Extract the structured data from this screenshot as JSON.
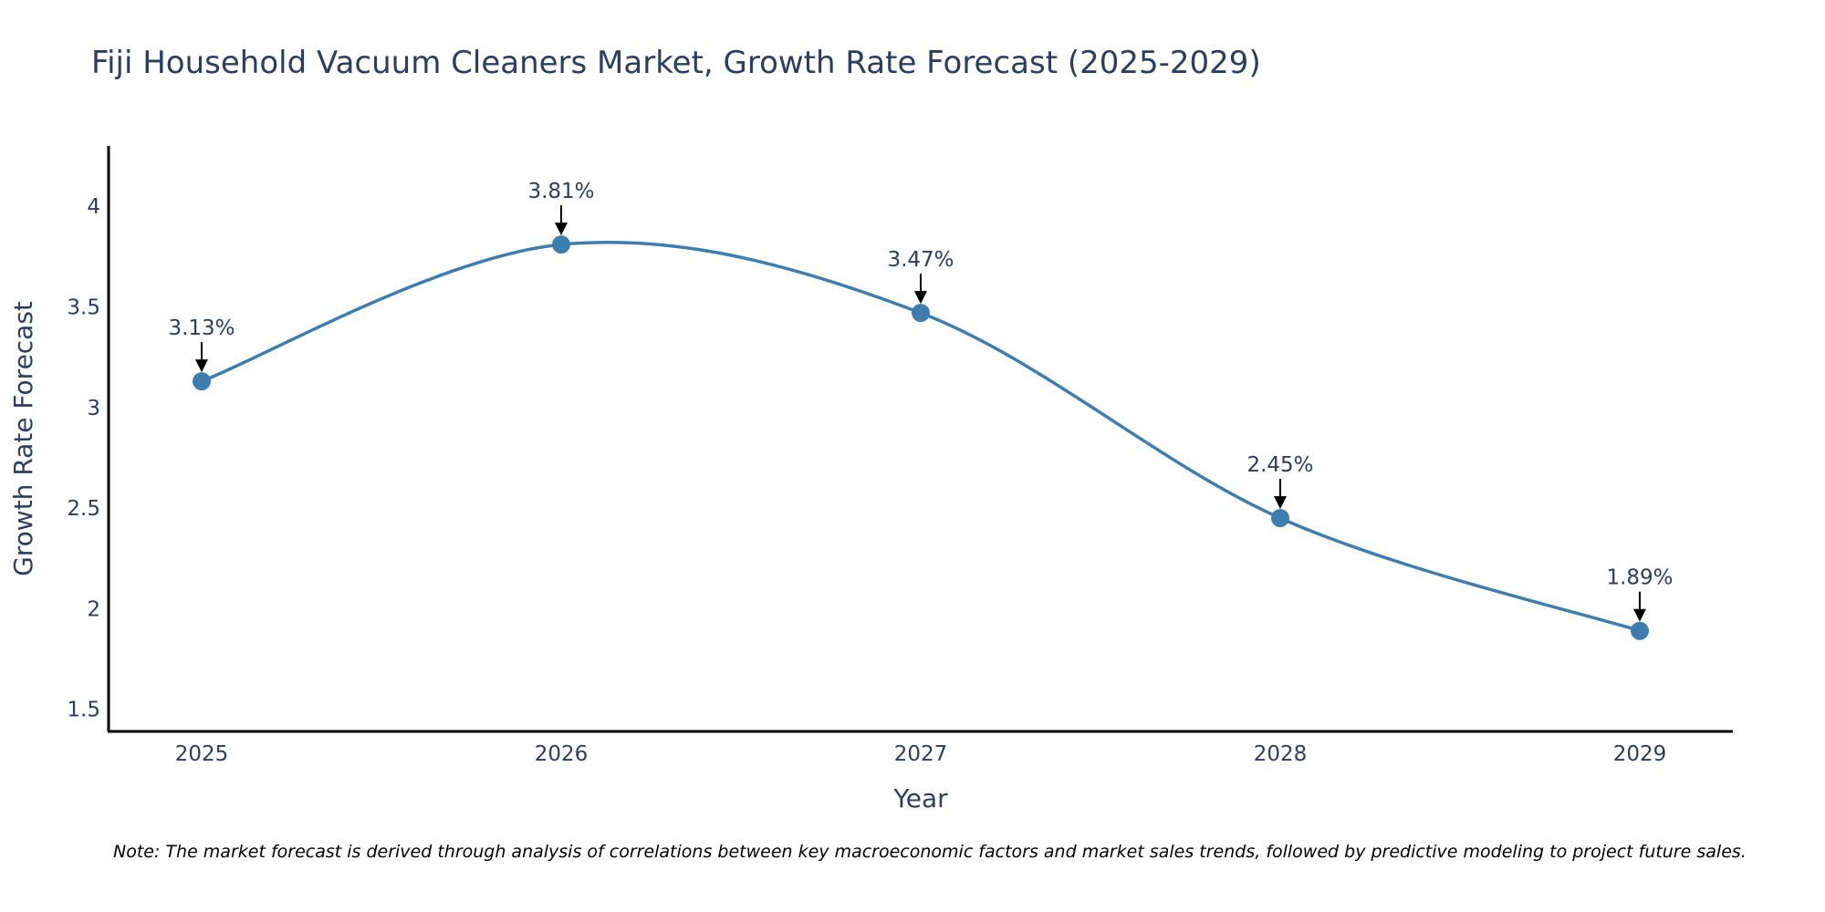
{
  "chart_data": {
    "type": "line",
    "title": "Fiji Household Vacuum Cleaners Market, Growth Rate Forecast (2025-2029)",
    "xlabel": "Year",
    "ylabel": "Growth Rate Forecast",
    "categories": [
      "2025",
      "2026",
      "2027",
      "2028",
      "2029"
    ],
    "series": [
      {
        "name": "Growth Rate Forecast",
        "values": [
          3.13,
          3.81,
          3.47,
          2.45,
          1.89
        ]
      }
    ],
    "data_labels": [
      "3.13%",
      "3.81%",
      "3.47%",
      "2.45%",
      "1.89%"
    ],
    "ylim": [
      1.39,
      4.3
    ],
    "yticks": [
      1.5,
      2,
      2.5,
      3,
      3.5,
      4
    ],
    "ytick_labels": [
      "1.5",
      "2",
      "2.5",
      "3",
      "3.5",
      "4"
    ],
    "line_shape": "spline",
    "grid": false,
    "legend": "none",
    "note": "Note: The market forecast is derived through analysis of correlations between key macroeconomic factors and market sales trends, followed by predictive modeling to project future sales."
  },
  "colors": {
    "line": "#3e7daf",
    "marker": "#3e7daf",
    "text": "#2a3f5f",
    "axis": "#000000",
    "arrow": "#000000"
  }
}
